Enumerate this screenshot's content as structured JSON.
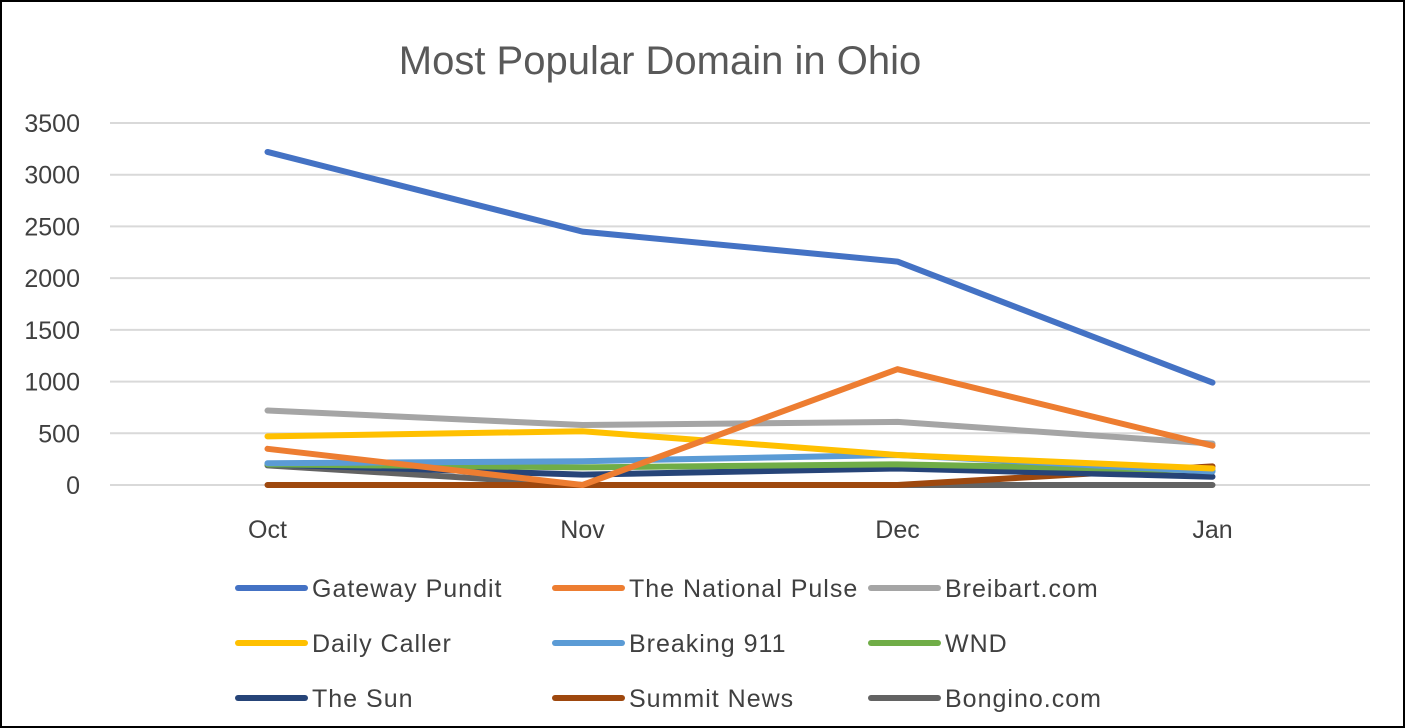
{
  "chart_data": {
    "type": "line",
    "title": "Most Popular Domain in Ohio",
    "xlabel": "",
    "ylabel": "",
    "categories": [
      "Oct",
      "Nov",
      "Dec",
      "Jan"
    ],
    "ylim": [
      0,
      3500
    ],
    "yticks": [
      "0",
      "500",
      "1000",
      "1500",
      "2000",
      "2500",
      "3000",
      "3500"
    ],
    "grid": true,
    "legend_position": "bottom",
    "series": [
      {
        "name": "Gateway Pundit",
        "color": "#4472C4",
        "values": [
          3220,
          2450,
          2160,
          990
        ]
      },
      {
        "name": "The National Pulse",
        "color": "#ED7D31",
        "values": [
          350,
          0,
          1120,
          380
        ]
      },
      {
        "name": "Breibart.com",
        "color": "#A5A5A5",
        "values": [
          720,
          580,
          610,
          400
        ]
      },
      {
        "name": "Daily Caller",
        "color": "#FFC000",
        "values": [
          470,
          520,
          290,
          160
        ]
      },
      {
        "name": "Breaking 911",
        "color": "#5B9BD5",
        "values": [
          210,
          230,
          290,
          130
        ]
      },
      {
        "name": "WND",
        "color": "#70AD47",
        "values": [
          200,
          170,
          200,
          140
        ]
      },
      {
        "name": "The Sun",
        "color": "#264478",
        "values": [
          200,
          100,
          160,
          80
        ]
      },
      {
        "name": "Summit News",
        "color": "#9E480E",
        "values": [
          0,
          0,
          0,
          180
        ]
      },
      {
        "name": "Bongino.com",
        "color": "#636363",
        "values": [
          190,
          0,
          0,
          0
        ]
      }
    ]
  }
}
